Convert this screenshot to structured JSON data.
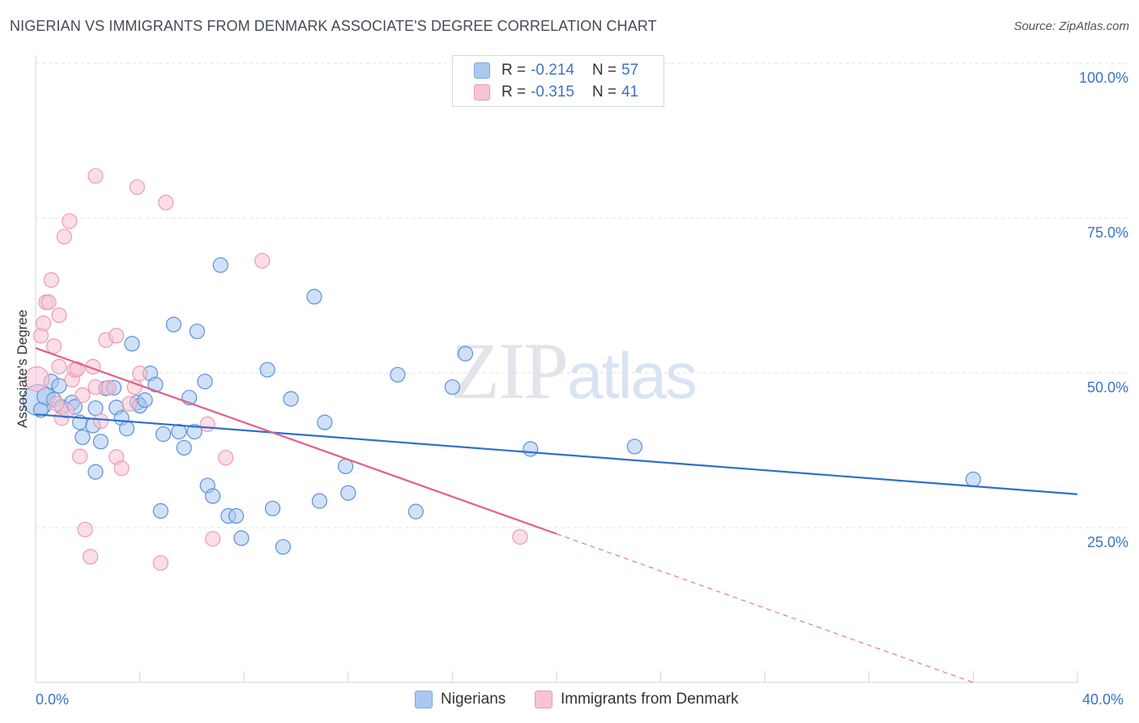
{
  "title": "NIGERIAN VS IMMIGRANTS FROM DENMARK ASSOCIATE'S DEGREE CORRELATION CHART",
  "source": "Source: ZipAtlas.com",
  "watermark": {
    "zip": "ZIP",
    "atlas": "atlas"
  },
  "legend": [
    {
      "r_label": "R = ",
      "r_value": "-0.214",
      "n_label": "N = ",
      "n_value": "57",
      "color": "#aac8f0",
      "border": "#7ea8e0"
    },
    {
      "r_label": "R = ",
      "r_value": "-0.315",
      "n_label": "N = ",
      "n_value": "41",
      "color": "#f8c3d4",
      "border": "#ec9ab4"
    }
  ],
  "bottom_legend": [
    {
      "label": "Nigerians",
      "color": "#aac8f0",
      "border": "#7ea8e0"
    },
    {
      "label": "Immigrants from Denmark",
      "color": "#f8c3d4",
      "border": "#ec9ab4"
    }
  ],
  "chart_data": {
    "type": "scatter",
    "title": "NIGERIAN VS IMMIGRANTS FROM DENMARK ASSOCIATE'S DEGREE CORRELATION CHART",
    "xlabel": "",
    "ylabel": "Associate's Degree",
    "xlim": [
      0,
      40
    ],
    "ylim": [
      0,
      100
    ],
    "x_tick_labels": [
      "0.0%",
      "40.0%"
    ],
    "y_ticks": [
      25,
      50,
      75,
      100
    ],
    "y_tick_labels": [
      "25.0%",
      "50.0%",
      "75.0%",
      "100.0%"
    ],
    "grid": true,
    "legend_position": "top-center",
    "series": [
      {
        "name": "Nigerians",
        "color": "#5b8fd9",
        "fill": "#aac8f0",
        "trend": {
          "x": [
            0,
            40
          ],
          "y": [
            43.3,
            30.4
          ],
          "color": "#2e6fce"
        },
        "points": [
          [
            0.1,
            45.6,
            18
          ],
          [
            0.4,
            46.2,
            10
          ],
          [
            0.6,
            48.6,
            8
          ],
          [
            0.9,
            47.9,
            8
          ],
          [
            0.7,
            45.7,
            8
          ],
          [
            1.0,
            44.5,
            8
          ],
          [
            1.4,
            45.2,
            8
          ],
          [
            1.5,
            44.5,
            8
          ],
          [
            1.7,
            42.0,
            8
          ],
          [
            1.8,
            39.6,
            8
          ],
          [
            2.2,
            41.5,
            8
          ],
          [
            2.3,
            44.3,
            8
          ],
          [
            2.3,
            34.0,
            8
          ],
          [
            2.5,
            38.9,
            8
          ],
          [
            2.7,
            47.5,
            8
          ],
          [
            3.0,
            47.6,
            8
          ],
          [
            3.1,
            44.4,
            8
          ],
          [
            3.3,
            42.7,
            8
          ],
          [
            3.5,
            41.0,
            8
          ],
          [
            3.7,
            54.7,
            8
          ],
          [
            3.9,
            45.2,
            8
          ],
          [
            4.0,
            44.7,
            8
          ],
          [
            4.2,
            45.6,
            8
          ],
          [
            4.4,
            49.9,
            8
          ],
          [
            4.6,
            48.1,
            8
          ],
          [
            4.8,
            27.7,
            8
          ],
          [
            4.9,
            40.1,
            8
          ],
          [
            5.3,
            57.8,
            8
          ],
          [
            5.5,
            40.5,
            8
          ],
          [
            5.7,
            37.9,
            8
          ],
          [
            5.9,
            46.0,
            8
          ],
          [
            6.1,
            40.5,
            8
          ],
          [
            6.2,
            56.7,
            8
          ],
          [
            6.5,
            48.6,
            8
          ],
          [
            6.6,
            31.8,
            8
          ],
          [
            6.8,
            30.1,
            8
          ],
          [
            7.1,
            67.4,
            8
          ],
          [
            7.4,
            26.9,
            8
          ],
          [
            7.7,
            26.9,
            8
          ],
          [
            7.9,
            23.3,
            8
          ],
          [
            8.9,
            50.5,
            8
          ],
          [
            9.1,
            28.1,
            8
          ],
          [
            9.5,
            21.9,
            8
          ],
          [
            9.8,
            45.8,
            8
          ],
          [
            10.7,
            62.3,
            8
          ],
          [
            10.9,
            29.3,
            8
          ],
          [
            11.1,
            42.0,
            8
          ],
          [
            11.9,
            34.9,
            8
          ],
          [
            12.0,
            30.6,
            8
          ],
          [
            13.9,
            49.7,
            8
          ],
          [
            14.6,
            27.6,
            8
          ],
          [
            16.0,
            47.7,
            8
          ],
          [
            16.5,
            53.1,
            8
          ],
          [
            19.0,
            37.7,
            8
          ],
          [
            23.0,
            38.1,
            8
          ],
          [
            36.0,
            32.8,
            8
          ],
          [
            0.2,
            44.0,
            8
          ]
        ]
      },
      {
        "name": "Immigrants from Denmark",
        "color": "#ec9ab4",
        "fill": "#f8c3d4",
        "trend": {
          "x": [
            0,
            20
          ],
          "y": [
            54.0,
            24.0
          ],
          "color": "#e0608c",
          "dash_to": [
            36,
            0
          ]
        },
        "points": [
          [
            0.2,
            56.0,
            8
          ],
          [
            0.3,
            58.0,
            8
          ],
          [
            0.4,
            61.4,
            8
          ],
          [
            0.5,
            61.4,
            8
          ],
          [
            0.6,
            65.0,
            8
          ],
          [
            0.7,
            54.3,
            8
          ],
          [
            0.9,
            51.0,
            8
          ],
          [
            0.9,
            59.3,
            8
          ],
          [
            1.0,
            42.7,
            8
          ],
          [
            1.1,
            72.0,
            8
          ],
          [
            1.3,
            74.5,
            8
          ],
          [
            1.4,
            48.9,
            8
          ],
          [
            1.5,
            50.5,
            8
          ],
          [
            1.6,
            50.6,
            8
          ],
          [
            1.7,
            36.5,
            8
          ],
          [
            1.8,
            46.4,
            8
          ],
          [
            1.9,
            24.7,
            8
          ],
          [
            2.1,
            20.3,
            8
          ],
          [
            2.2,
            51.0,
            8
          ],
          [
            2.3,
            47.7,
            8
          ],
          [
            2.3,
            81.8,
            8
          ],
          [
            2.5,
            42.2,
            8
          ],
          [
            2.7,
            55.3,
            8
          ],
          [
            2.8,
            47.6,
            8
          ],
          [
            3.1,
            36.4,
            8
          ],
          [
            3.1,
            56.0,
            8
          ],
          [
            3.3,
            34.6,
            8
          ],
          [
            3.6,
            45.0,
            8
          ],
          [
            3.8,
            47.7,
            8
          ],
          [
            3.9,
            80.0,
            8
          ],
          [
            4.0,
            49.9,
            8
          ],
          [
            4.8,
            19.3,
            8
          ],
          [
            5.0,
            77.5,
            8
          ],
          [
            6.6,
            41.7,
            8
          ],
          [
            6.8,
            23.2,
            8
          ],
          [
            7.3,
            36.3,
            8
          ],
          [
            8.7,
            68.1,
            8
          ],
          [
            18.6,
            23.5,
            8
          ],
          [
            0.05,
            49.0,
            14
          ],
          [
            1.2,
            43.9,
            8
          ],
          [
            0.8,
            45.0,
            8
          ]
        ]
      }
    ]
  }
}
